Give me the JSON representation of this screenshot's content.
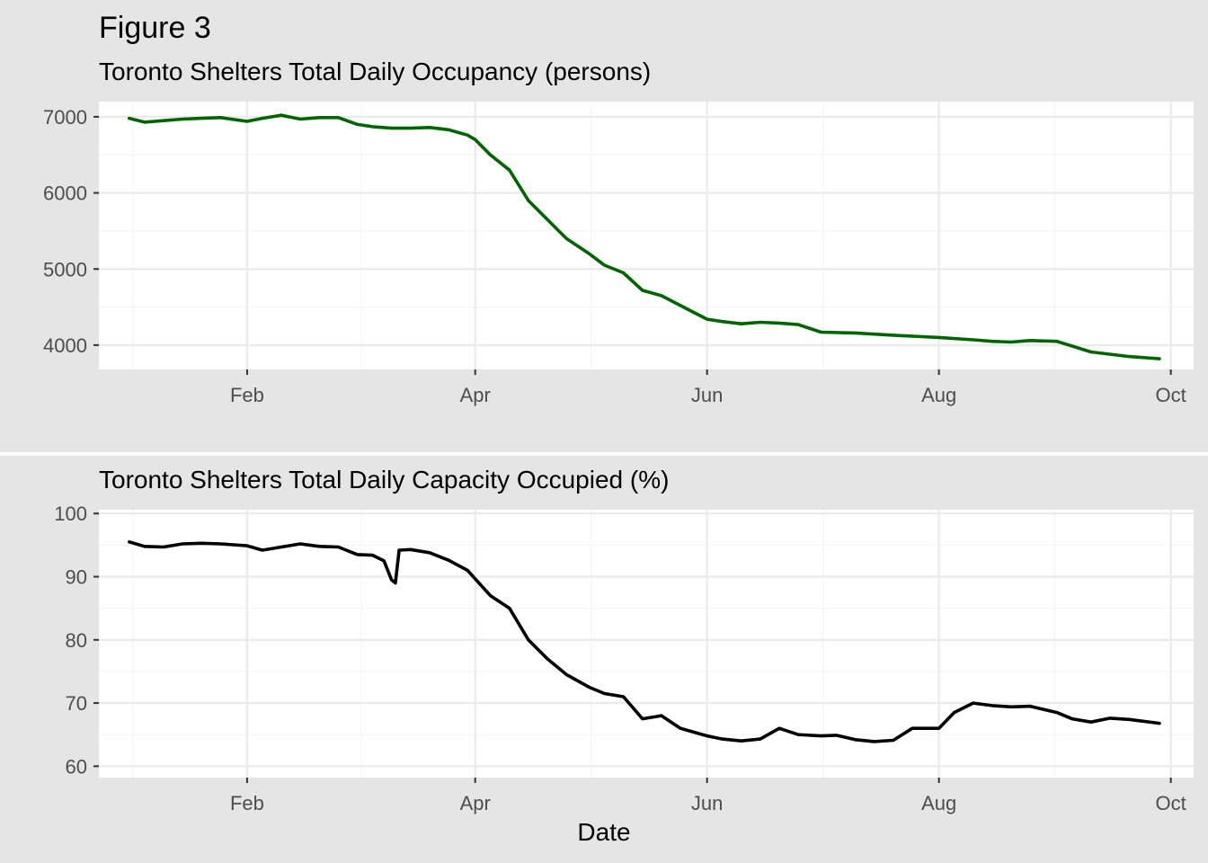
{
  "figure": {
    "title": "Figure 3",
    "xlabel": "Date"
  },
  "chart_data": [
    {
      "type": "line",
      "title": "Toronto Shelters Total Daily Occupancy (persons)",
      "xlabel": "",
      "ylabel": "",
      "x_tick_labels": [
        "Feb",
        "Apr",
        "Jun",
        "Aug",
        "Oct"
      ],
      "x_tick_dates": [
        "2020-02-01",
        "2020-04-01",
        "2020-06-01",
        "2020-08-01",
        "2020-10-01"
      ],
      "xlim": [
        "2019-12-24",
        "2020-10-07"
      ],
      "y_ticks": [
        4000,
        5000,
        6000,
        7000
      ],
      "ylim": [
        3680,
        7200
      ],
      "grid": true,
      "color": "#006400",
      "series": [
        {
          "x": [
            "2020-01-01",
            "2020-01-05",
            "2020-01-10",
            "2020-01-15",
            "2020-01-20",
            "2020-01-25",
            "2020-02-01",
            "2020-02-05",
            "2020-02-10",
            "2020-02-15",
            "2020-02-20",
            "2020-02-25",
            "2020-03-01",
            "2020-03-05",
            "2020-03-10",
            "2020-03-15",
            "2020-03-20",
            "2020-03-25",
            "2020-03-30",
            "2020-04-01",
            "2020-04-05",
            "2020-04-10",
            "2020-04-15",
            "2020-04-20",
            "2020-04-25",
            "2020-05-01",
            "2020-05-05",
            "2020-05-10",
            "2020-05-15",
            "2020-05-20",
            "2020-05-25",
            "2020-06-01",
            "2020-06-05",
            "2020-06-10",
            "2020-06-15",
            "2020-06-20",
            "2020-06-25",
            "2020-07-01",
            "2020-07-10",
            "2020-07-20",
            "2020-08-01",
            "2020-08-10",
            "2020-08-15",
            "2020-08-20",
            "2020-08-25",
            "2020-09-01",
            "2020-09-10",
            "2020-09-20",
            "2020-09-28"
          ],
          "values": [
            6980,
            6930,
            6950,
            6970,
            6980,
            6990,
            6940,
            6980,
            7020,
            6970,
            6990,
            6990,
            6900,
            6870,
            6850,
            6850,
            6860,
            6830,
            6760,
            6700,
            6500,
            6300,
            5900,
            5650,
            5400,
            5200,
            5050,
            4950,
            4720,
            4650,
            4520,
            4340,
            4310,
            4280,
            4300,
            4290,
            4270,
            4170,
            4160,
            4130,
            4100,
            4070,
            4050,
            4040,
            4060,
            4050,
            3910,
            3850,
            3820
          ]
        }
      ]
    },
    {
      "type": "line",
      "title": "Toronto Shelters Total Daily Capacity Occupied (%)",
      "xlabel": "Date",
      "ylabel": "",
      "x_tick_labels": [
        "Feb",
        "Apr",
        "Jun",
        "Aug",
        "Oct"
      ],
      "x_tick_dates": [
        "2020-02-01",
        "2020-04-01",
        "2020-06-01",
        "2020-08-01",
        "2020-10-01"
      ],
      "xlim": [
        "2019-12-24",
        "2020-10-07"
      ],
      "y_ticks": [
        60,
        70,
        80,
        90,
        100
      ],
      "ylim": [
        58.2,
        100.6
      ],
      "grid": true,
      "color": "#000000",
      "series": [
        {
          "x": [
            "2020-01-01",
            "2020-01-05",
            "2020-01-10",
            "2020-01-15",
            "2020-01-20",
            "2020-01-25",
            "2020-02-01",
            "2020-02-05",
            "2020-02-10",
            "2020-02-15",
            "2020-02-20",
            "2020-02-25",
            "2020-03-01",
            "2020-03-05",
            "2020-03-08",
            "2020-03-10",
            "2020-03-11",
            "2020-03-12",
            "2020-03-15",
            "2020-03-20",
            "2020-03-25",
            "2020-03-30",
            "2020-04-05",
            "2020-04-10",
            "2020-04-15",
            "2020-04-20",
            "2020-04-25",
            "2020-05-01",
            "2020-05-05",
            "2020-05-10",
            "2020-05-15",
            "2020-05-20",
            "2020-05-25",
            "2020-06-01",
            "2020-06-05",
            "2020-06-10",
            "2020-06-15",
            "2020-06-20",
            "2020-06-25",
            "2020-07-01",
            "2020-07-05",
            "2020-07-10",
            "2020-07-15",
            "2020-07-20",
            "2020-07-25",
            "2020-08-01",
            "2020-08-05",
            "2020-08-10",
            "2020-08-15",
            "2020-08-20",
            "2020-08-25",
            "2020-09-01",
            "2020-09-05",
            "2020-09-10",
            "2020-09-15",
            "2020-09-20",
            "2020-09-28"
          ],
          "values": [
            95.5,
            94.8,
            94.7,
            95.2,
            95.3,
            95.2,
            94.9,
            94.2,
            94.7,
            95.2,
            94.8,
            94.7,
            93.5,
            93.4,
            92.5,
            89.5,
            89.0,
            94.2,
            94.3,
            93.8,
            92.6,
            91.0,
            87.0,
            85.0,
            80.0,
            77.0,
            74.5,
            72.5,
            71.5,
            71.0,
            67.5,
            68.0,
            66.0,
            64.8,
            64.3,
            64.0,
            64.3,
            66.0,
            65.0,
            64.8,
            64.9,
            64.2,
            63.9,
            64.1,
            66.0,
            66.0,
            68.5,
            70.0,
            69.6,
            69.4,
            69.5,
            68.5,
            67.5,
            67.0,
            67.6,
            67.4,
            66.8
          ]
        }
      ]
    }
  ]
}
